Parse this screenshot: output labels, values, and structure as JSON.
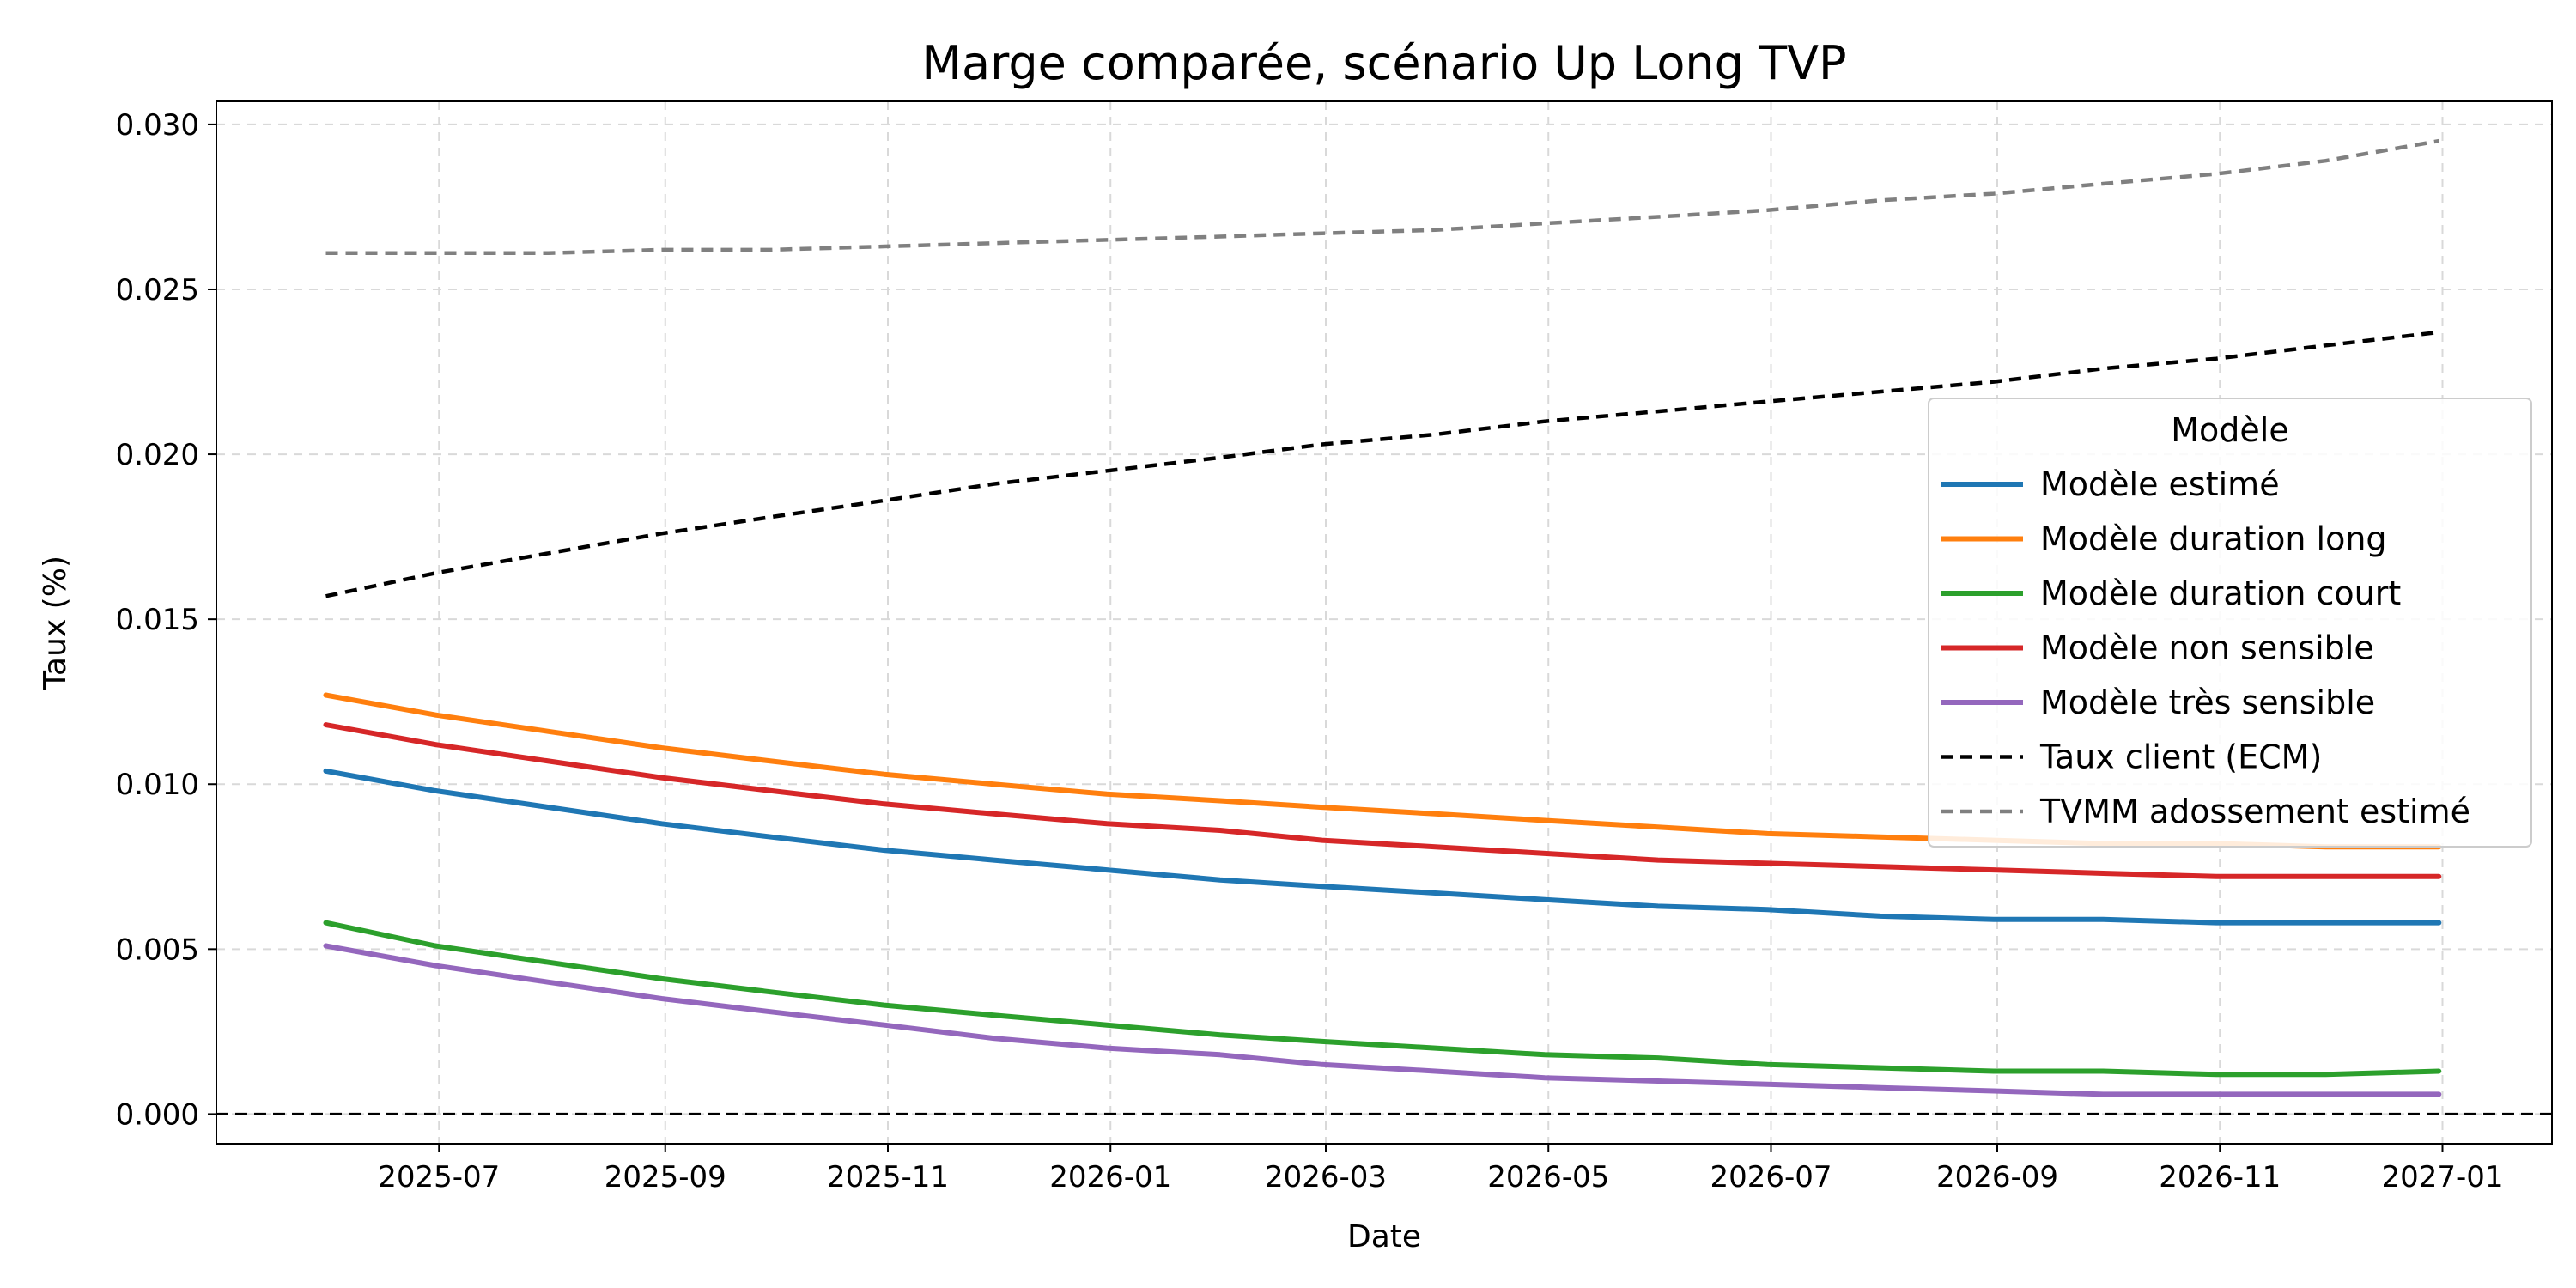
{
  "chart_data": {
    "type": "line",
    "title": "Marge comparée, scénario Up Long TVP",
    "xlabel": "Date",
    "ylabel": "Taux (%)",
    "x_axis_type": "date",
    "xlim": [
      "2025-05-01",
      "2027-01-31"
    ],
    "ylim": [
      -0.0009,
      0.0307
    ],
    "x_ticks": [
      "2025-07",
      "2025-09",
      "2025-11",
      "2026-01",
      "2026-03",
      "2026-05",
      "2026-07",
      "2026-09",
      "2026-11",
      "2027-01"
    ],
    "y_ticks": [
      "0.000",
      "0.005",
      "0.010",
      "0.015",
      "0.020",
      "0.025",
      "0.030"
    ],
    "grid": true,
    "legend": {
      "title": "Modèle",
      "placement": "center-right"
    },
    "reference_line": {
      "y": 0.0,
      "style": "dashed",
      "color": "#000000"
    },
    "x": [
      "2025-05-31",
      "2025-06-30",
      "2025-07-31",
      "2025-08-31",
      "2025-09-30",
      "2025-10-31",
      "2025-11-30",
      "2025-12-31",
      "2026-01-31",
      "2026-02-28",
      "2026-03-31",
      "2026-04-30",
      "2026-05-31",
      "2026-06-30",
      "2026-07-31",
      "2026-08-31",
      "2026-09-30",
      "2026-10-31",
      "2026-11-30",
      "2026-12-31"
    ],
    "series": [
      {
        "name": "Modèle estimé",
        "color": "#1f77b4",
        "dash": "solid",
        "values": [
          0.0104,
          0.0098,
          0.0093,
          0.0088,
          0.0084,
          0.008,
          0.0077,
          0.0074,
          0.0071,
          0.0069,
          0.0067,
          0.0065,
          0.0063,
          0.0062,
          0.006,
          0.0059,
          0.0059,
          0.0058,
          0.0058,
          0.0058
        ]
      },
      {
        "name": "Modèle duration long",
        "color": "#ff7f0e",
        "dash": "solid",
        "values": [
          0.0127,
          0.0121,
          0.0116,
          0.0111,
          0.0107,
          0.0103,
          0.01,
          0.0097,
          0.0095,
          0.0093,
          0.0091,
          0.0089,
          0.0087,
          0.0085,
          0.0084,
          0.0083,
          0.0082,
          0.0082,
          0.0081,
          0.0081
        ]
      },
      {
        "name": "Modèle duration court",
        "color": "#2ca02c",
        "dash": "solid",
        "values": [
          0.0058,
          0.0051,
          0.0046,
          0.0041,
          0.0037,
          0.0033,
          0.003,
          0.0027,
          0.0024,
          0.0022,
          0.002,
          0.0018,
          0.0017,
          0.0015,
          0.0014,
          0.0013,
          0.0013,
          0.0012,
          0.0012,
          0.0013
        ]
      },
      {
        "name": "Modèle non sensible",
        "color": "#d62728",
        "dash": "solid",
        "values": [
          0.0118,
          0.0112,
          0.0107,
          0.0102,
          0.0098,
          0.0094,
          0.0091,
          0.0088,
          0.0086,
          0.0083,
          0.0081,
          0.0079,
          0.0077,
          0.0076,
          0.0075,
          0.0074,
          0.0073,
          0.0072,
          0.0072,
          0.0072
        ]
      },
      {
        "name": "Modèle très sensible",
        "color": "#9467bd",
        "dash": "solid",
        "values": [
          0.0051,
          0.0045,
          0.004,
          0.0035,
          0.0031,
          0.0027,
          0.0023,
          0.002,
          0.0018,
          0.0015,
          0.0013,
          0.0011,
          0.001,
          0.0009,
          0.0008,
          0.0007,
          0.0006,
          0.0006,
          0.0006,
          0.0006
        ]
      },
      {
        "name": "Taux client (ECM)",
        "color": "#000000",
        "dash": "dashed",
        "values": [
          0.0157,
          0.0164,
          0.017,
          0.0176,
          0.0181,
          0.0186,
          0.0191,
          0.0195,
          0.0199,
          0.0203,
          0.0206,
          0.021,
          0.0213,
          0.0216,
          0.0219,
          0.0222,
          0.0226,
          0.0229,
          0.0233,
          0.0237
        ]
      },
      {
        "name": "TVMM adossement estimé",
        "color": "#808080",
        "dash": "dashed",
        "values": [
          0.0261,
          0.0261,
          0.0261,
          0.0262,
          0.0262,
          0.0263,
          0.0264,
          0.0265,
          0.0266,
          0.0267,
          0.0268,
          0.027,
          0.0272,
          0.0274,
          0.0277,
          0.0279,
          0.0282,
          0.0285,
          0.0289,
          0.0295
        ]
      }
    ]
  }
}
